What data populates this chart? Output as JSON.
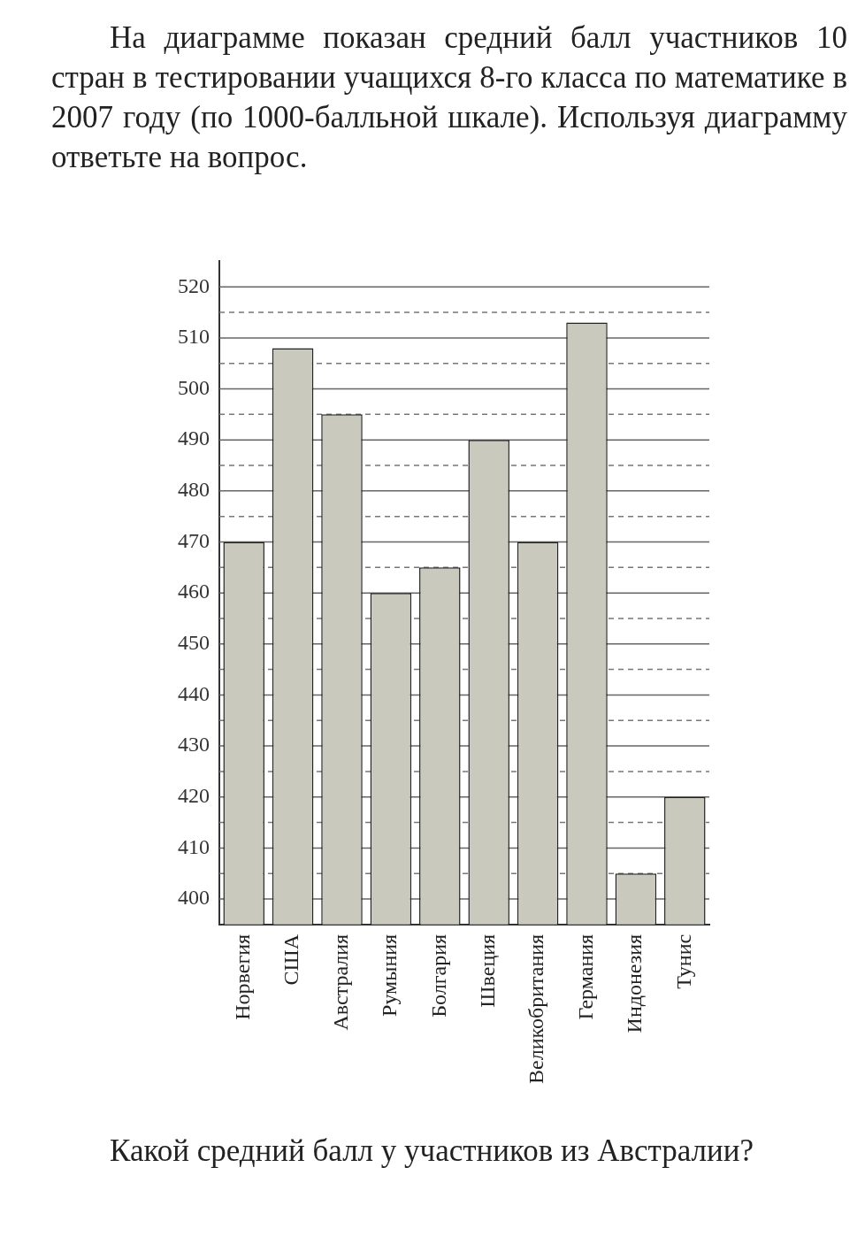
{
  "chart_data": {
    "type": "bar",
    "title": "На диаграмме показан средний балл участников 10 стран в тестировании учащихся 8-го класса по математике в 2007 году (по 1000-балльной шкале). Используя диаграмму ответьте на вопрос.",
    "categories": [
      "Норвегия",
      "США",
      "Австралия",
      "Румыния",
      "Болгария",
      "Швеция",
      "Великобритания",
      "Германия",
      "Индонезия",
      "Тунис"
    ],
    "values": [
      470,
      508,
      495,
      460,
      465,
      490,
      470,
      513,
      405,
      420
    ],
    "color": "#c9c9bd",
    "ylim": [
      395,
      525
    ],
    "yticks": [
      400,
      {
        "value": 405,
        "label": null
      },
      410,
      {
        "value": 415,
        "label": null
      },
      420,
      {
        "value": 425,
        "label": null
      },
      430,
      {
        "value": 435,
        "label": null
      },
      440,
      {
        "value": 445,
        "label": null
      },
      450,
      {
        "value": 455,
        "label": null
      },
      460,
      {
        "value": 465,
        "label": null
      },
      470,
      {
        "value": 475,
        "label": null
      },
      480,
      {
        "value": 485,
        "label": null
      },
      490,
      {
        "value": 495,
        "label": null
      },
      500,
      {
        "value": 505,
        "label": null
      },
      510,
      {
        "value": 515,
        "label": null
      },
      520
    ],
    "grid": "y",
    "legend": false,
    "annotations": [
      "Какой средний балл у участников из Австралии?"
    ]
  }
}
